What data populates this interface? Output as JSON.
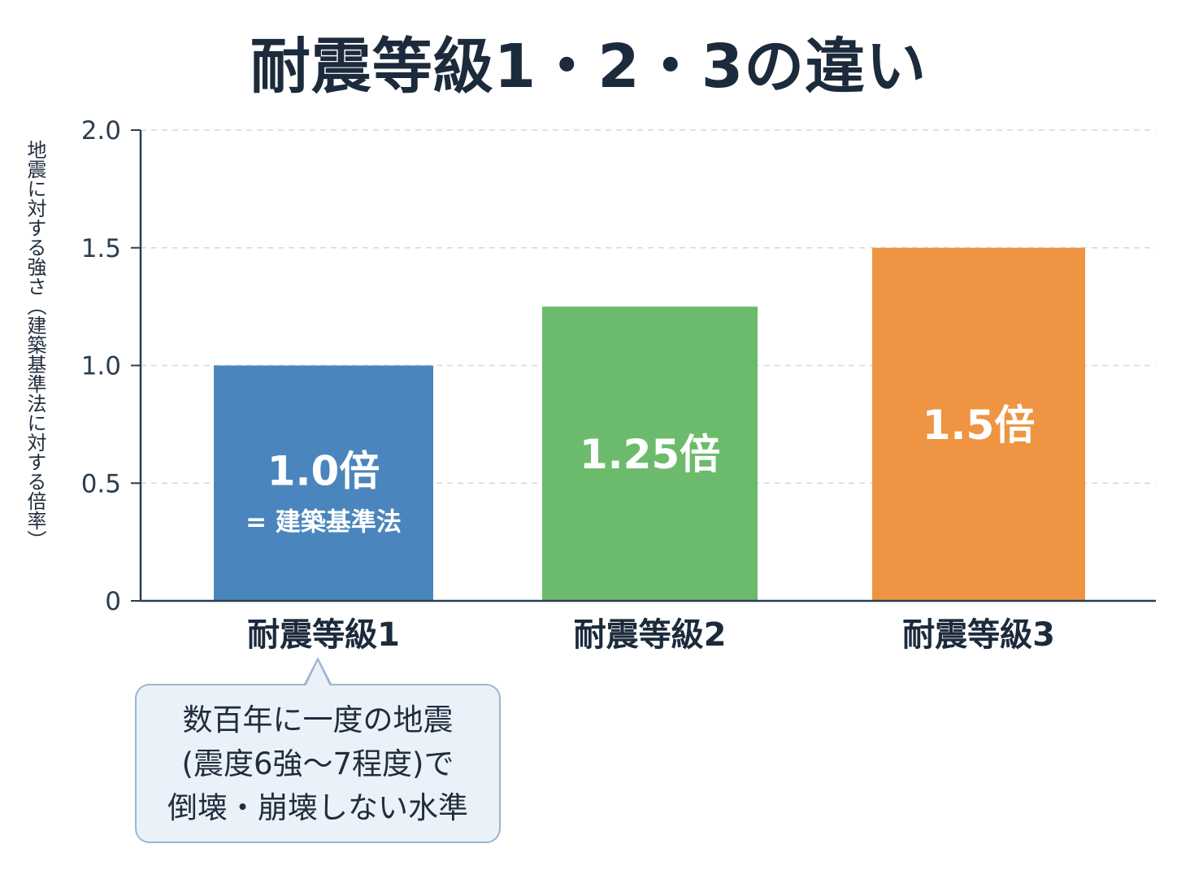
{
  "title": "耐震等級1・2・3の違い",
  "chart_data": {
    "type": "bar",
    "title": "耐震等級1・2・3の違い",
    "ylabel": "地震に対する強さ（建築基準法に対する倍率）",
    "xlabel": "",
    "ylim": [
      0,
      2.0
    ],
    "yticks": [
      0,
      0.5,
      1.0,
      1.5,
      2.0
    ],
    "ytick_labels": [
      "0",
      "0.5",
      "1.0",
      "1.5",
      "2.0"
    ],
    "grid": true,
    "categories": [
      "耐震等級1",
      "耐震等級2",
      "耐震等級3"
    ],
    "values": [
      1.0,
      1.25,
      1.5
    ],
    "bar_labels": [
      "1.0倍",
      "1.25倍",
      "1.5倍"
    ],
    "bar_sublabels": [
      "= 建築基準法",
      "",
      ""
    ],
    "colors": [
      "#4a86bd",
      "#6cbb6c",
      "#ef9442"
    ]
  },
  "callout": {
    "lines": [
      "数百年に一度の地震",
      "(震度6強〜7程度)で",
      "倒壊・崩壊しない水準"
    ]
  }
}
